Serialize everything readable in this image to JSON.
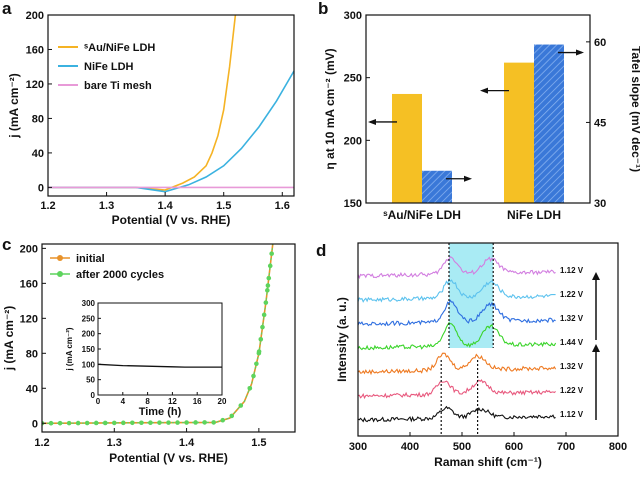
{
  "panels": {
    "a": {
      "label": "a",
      "chart_data": {
        "type": "line",
        "xlabel": "Potential (V vs. RHE)",
        "ylabel": "j (mA cm⁻²)",
        "xlim": [
          1.2,
          1.62
        ],
        "ylim": [
          -10,
          200
        ],
        "xticks": [
          "1.2",
          "1.3",
          "1.4",
          "1.5",
          "1.6"
        ],
        "yticks": [
          "0",
          "40",
          "80",
          "120",
          "160",
          "200"
        ],
        "legend_position": "top-left",
        "series": [
          {
            "name": "ˢAu/NiFe LDH",
            "color": "#f5b324",
            "x": [
              1.2,
              1.35,
              1.4,
              1.43,
              1.45,
              1.47,
              1.48,
              1.49,
              1.5,
              1.51,
              1.52
            ],
            "y": [
              0,
              0,
              -3,
              5,
              12,
              25,
              40,
              60,
              90,
              140,
              200
            ]
          },
          {
            "name": "NiFe LDH",
            "color": "#3bb2e0",
            "x": [
              1.2,
              1.35,
              1.4,
              1.44,
              1.47,
              1.5,
              1.53,
              1.56,
              1.59,
              1.62
            ],
            "y": [
              0,
              0,
              -5,
              3,
              12,
              25,
              45,
              70,
              100,
              135
            ]
          },
          {
            "name": "bare Ti mesh",
            "color": "#e89ad8",
            "x": [
              1.2,
              1.62
            ],
            "y": [
              0,
              0
            ]
          }
        ]
      }
    },
    "b": {
      "label": "b",
      "chart_data": {
        "type": "bar",
        "categories": [
          "ˢAu/NiFe LDH",
          "NiFe LDH"
        ],
        "ylabel": "η at 10 mA cm⁻² (mV)",
        "y2label": "Tafel slope (mV dec⁻¹)",
        "ylim": [
          150,
          300
        ],
        "y2lim": [
          30,
          65
        ],
        "yticks": [
          "150",
          "200",
          "250",
          "300"
        ],
        "y2ticks": [
          "30",
          "45",
          "60"
        ],
        "series": [
          {
            "axis": "left",
            "color": "#f5c024",
            "values": [
              237,
              262
            ]
          },
          {
            "axis": "right",
            "color": "#3a78d8",
            "values": [
              36,
              59.5
            ]
          }
        ]
      }
    },
    "c": {
      "label": "c",
      "chart_data": {
        "type": "line",
        "xlabel": "Potential (V vs. RHE)",
        "ylabel": "j (mA cm⁻²)",
        "xlim": [
          1.2,
          1.55
        ],
        "ylim": [
          -10,
          205
        ],
        "xticks": [
          "1.2",
          "1.3",
          "1.4",
          "1.5"
        ],
        "yticks": [
          "0",
          "40",
          "80",
          "120",
          "160",
          "200"
        ],
        "legend_position": "top-left",
        "series": [
          {
            "name": "initial",
            "color": "#e8922a",
            "x": [
              1.2,
              1.44,
              1.46,
              1.48,
              1.49,
              1.5,
              1.51,
              1.52
            ],
            "y": [
              0,
              1,
              6,
              25,
              45,
              80,
              140,
              210
            ]
          },
          {
            "name": "after 2000 cycles",
            "color": "#5dd45d",
            "x": [
              1.2,
              1.44,
              1.46,
              1.48,
              1.49,
              1.5,
              1.51,
              1.52
            ],
            "y": [
              0,
              1,
              6,
              25,
              45,
              80,
              140,
              210
            ]
          }
        ],
        "inset": {
          "xlabel": "Time (h)",
          "ylabel": "j (mA cm⁻²)",
          "xlim": [
            0,
            20
          ],
          "ylim": [
            0,
            300
          ],
          "xticks": [
            "0",
            "4",
            "8",
            "12",
            "16",
            "20"
          ],
          "yticks": [
            "0",
            "50",
            "100",
            "150",
            "200",
            "250",
            "300"
          ],
          "series": {
            "x": [
              0,
              4,
              8,
              12,
              14,
              16,
              20
            ],
            "y": [
              100,
              96,
              94,
              92,
              91,
              91,
              91
            ]
          }
        }
      }
    },
    "d": {
      "label": "d",
      "chart_data": {
        "type": "line",
        "xlabel": "Raman shift (cm⁻¹)",
        "ylabel": "Intensity (a. u.)",
        "xlim": [
          300,
          800
        ],
        "xticks": [
          "300",
          "400",
          "500",
          "600",
          "700",
          "800"
        ],
        "highlight_range": [
          475,
          560
        ],
        "dotted_lines": [
          460,
          530
        ],
        "spectra": [
          {
            "label": "1.12 V",
            "color": "#111111",
            "p1": 470,
            "p2": 535,
            "h": 10
          },
          {
            "label": "1.22 V",
            "color": "#e8597e",
            "p1": 465,
            "p2": 535,
            "h": 14
          },
          {
            "label": "1.32 V",
            "color": "#ee7a22",
            "p1": 465,
            "p2": 530,
            "h": 16
          },
          {
            "label": "1.44 V",
            "color": "#3ad42a",
            "p1": 478,
            "p2": 555,
            "h": 22
          },
          {
            "label": "1.32 V",
            "color": "#2f6fe0",
            "p1": 478,
            "p2": 555,
            "h": 20
          },
          {
            "label": "1.22 V",
            "color": "#5cc2ee",
            "p1": 478,
            "p2": 555,
            "h": 18
          },
          {
            "label": "1.12 V",
            "color": "#d27ee0",
            "p1": 478,
            "p2": 555,
            "h": 17
          }
        ]
      }
    }
  }
}
